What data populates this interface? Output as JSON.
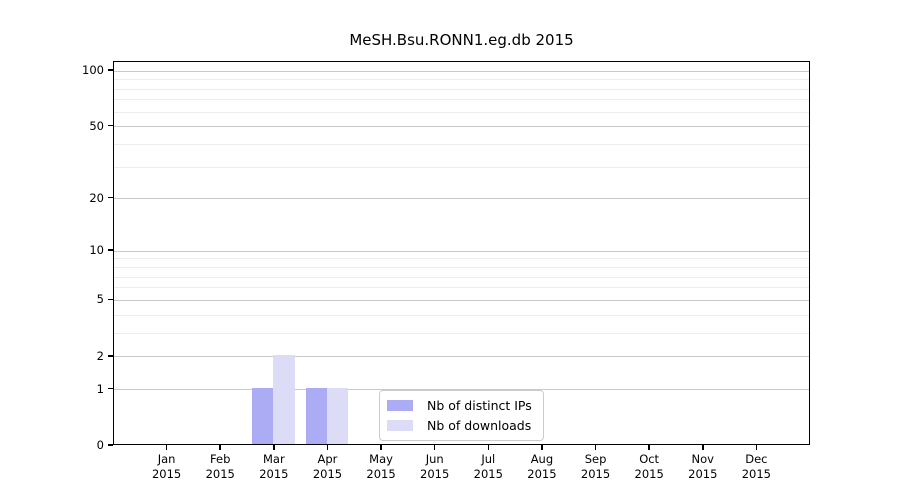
{
  "chart_data": {
    "type": "bar",
    "title": "MeSH.Bsu.RONN1.eg.db 2015",
    "categories": [
      "Jan",
      "Feb",
      "Mar",
      "Apr",
      "May",
      "Jun",
      "Jul",
      "Aug",
      "Sep",
      "Oct",
      "Nov",
      "Dec"
    ],
    "x_tick_year": "2015",
    "series": [
      {
        "name": "Nb of distinct IPs",
        "color": "#acacf4",
        "values": [
          0,
          0,
          1,
          1,
          0,
          0,
          0,
          0,
          0,
          0,
          0,
          0
        ]
      },
      {
        "name": "Nb of downloads",
        "color": "#dcdcf6",
        "values": [
          0,
          0,
          2,
          1,
          0,
          0,
          0,
          0,
          0,
          0,
          0,
          0
        ]
      }
    ],
    "yscale": "log1p",
    "ylim": [
      0,
      112
    ],
    "yticks": [
      0,
      1,
      2,
      5,
      10,
      20,
      50,
      100
    ],
    "minor_gridlines": [
      3,
      4,
      6,
      7,
      8,
      9,
      30,
      40,
      60,
      70,
      80,
      90
    ],
    "legend": {
      "entries": [
        "Nb of distinct IPs",
        "Nb of downloads"
      ],
      "position": "bottom-center"
    },
    "colors": {
      "major_grid": "#c9c9c9",
      "minor_grid": "#ececec",
      "axis": "#000000",
      "background": "#ffffff"
    },
    "grid": "on",
    "xlabel": "",
    "ylabel": ""
  }
}
